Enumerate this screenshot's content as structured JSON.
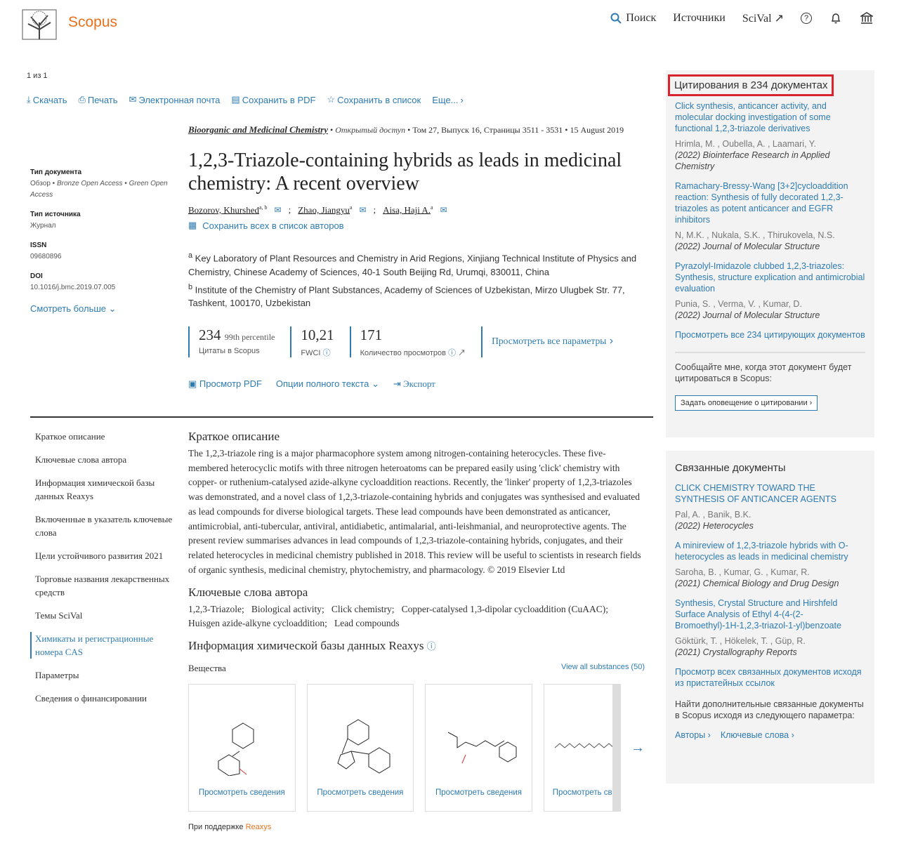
{
  "header": {
    "brand": "Scopus",
    "nav": {
      "search": "Поиск",
      "sources": "Источники",
      "scival": "SciVal ↗"
    },
    "icons": [
      "search-icon",
      "help-icon",
      "bell-icon",
      "institution-icon"
    ]
  },
  "counter": "1 из 1",
  "toolbar": {
    "download": "Скачать",
    "print": "Печать",
    "email": "Электронная почта",
    "save_pdf": "Сохранить в PDF",
    "save_list": "Сохранить в список",
    "more": "Еще..."
  },
  "meta": {
    "doc_type_label": "Тип документа",
    "doc_type": "Обзор •",
    "access1": "Bronze Open Access •",
    "access2": "Green Open Access",
    "source_type_label": "Тип источника",
    "source_type": "Журнал",
    "issn_label": "ISSN",
    "issn": "09680896",
    "doi_label": "DOI",
    "doi": "10.1016/j.bmc.2019.07.005",
    "see_more": "Смотреть больше"
  },
  "article": {
    "journal": "Bioorganic and Medicinal Chemistry",
    "open_access": "Открытый доступ",
    "volume": "Том 27, Выпуск 16, Страницы 3511 - 3531",
    "date": "15 August 2019",
    "title": "1,2,3-Triazole-containing hybrids as leads in medicinal chemistry: A recent overview",
    "authors": [
      {
        "name": "Bozorov, Khurshed",
        "sup": "a, b"
      },
      {
        "name": "Zhao, Jiangyu",
        "sup": "a"
      },
      {
        "name": "Aisa, Haji A.",
        "sup": "a"
      }
    ],
    "save_authors": "Сохранить всех в список авторов",
    "affiliations": [
      {
        "sup": "a",
        "text": "Key Laboratory of Plant Resources and Chemistry in Arid Regions, Xinjiang Technical Institute of Physics and Chemistry, Chinese Academy of Sciences, 40-1 South Beijing Rd, Urumqi, 830011, China"
      },
      {
        "sup": "b",
        "text": "Institute of the Chemistry of Plant Substances, Academy of Sciences of Uzbekistan, Mirzo Ulugbek Str. 77, Tashkent, 100170, Uzbekistan"
      }
    ]
  },
  "metrics": {
    "citations": "234",
    "percentile": "99th percentile",
    "citations_label": "Цитаты в Scopus",
    "fwci": "10,21",
    "fwci_label": "FWCI",
    "views": "171",
    "views_label": "Количество просмотров",
    "all": "Просмотреть все параметры"
  },
  "actions": {
    "pdf": "Просмотр PDF",
    "fulltext": "Опции полного текста",
    "export": "Экспорт"
  },
  "leftnav": [
    "Краткое описание",
    "Ключевые слова автора",
    "Информация химической базы данных Reaxys",
    "Включенные в указатель ключевые слова",
    "Цели устойчивого развития 2021",
    "Торговые названия лекарственных средств",
    "Темы SciVal",
    "Химикаты и регистрационные номера CAS",
    "Параметры",
    "Сведения о финансировании"
  ],
  "abstract": {
    "heading": "Краткое описание",
    "text": "The 1,2,3-triazole ring is a major pharmacophore system among nitrogen-containing heterocycles. These five-membered heterocyclic motifs with three nitrogen heteroatoms can be prepared easily using 'click' chemistry with copper- or ruthenium-catalysed azide-alkyne cycloaddition reactions. Recently, the 'linker' property of 1,2,3-triazoles was demonstrated, and a novel class of 1,2,3-triazole-containing hybrids and conjugates was synthesised and evaluated as lead compounds for diverse biological targets. These lead compounds have been demonstrated as anticancer, antimicrobial, anti-tubercular, antiviral, antidiabetic, antimalarial, anti-leishmanial, and neuroprotective agents. The present review summarises advances in lead compounds of 1,2,3-triazole-containing hybrids, conjugates, and their related heterocycles in medicinal chemistry published in 2018. This review will be useful to scientists in research fields of organic synthesis, medicinal chemistry, phytochemistry, and pharmacology. © 2019 Elsevier Ltd"
  },
  "keywords": {
    "heading": "Ключевые слова автора",
    "text": "1,2,3-Triazole;   Biological activity;   Click chemistry;   Copper-catalysed 1,3-dipolar cycloaddition (CuAAC);   Huisgen azide-alkyne cycloaddition;   Lead compounds"
  },
  "reaxys": {
    "heading": "Информация химической базы данных Reaxys",
    "substances": "Вещества",
    "view_all": "View all substances (50)",
    "card_link": "Просмотреть сведения",
    "powered": "При поддержке",
    "brand": "Reaxys"
  },
  "citations_panel": {
    "heading": "Цитирования в 234 документах",
    "items": [
      {
        "title": "Click synthesis, anticancer activity, and molecular docking investigation of some functional 1,2,3-triazole derivatives",
        "authors": "Hrimla, M. , Oubella, A. , Laamari, Y.",
        "journal": "(2022) Biointerface Research in Applied Chemistry"
      },
      {
        "title": "Ramachary-Bressy-Wang [3+2]cycloaddition reaction: Synthesis of fully decorated 1,2,3-triazoles as potent anticancer and EGFR inhibitors",
        "authors": "N, M.K. , Nukala, S.K. , Thirukovela, N.S.",
        "journal": "(2022) Journal of Molecular Structure"
      },
      {
        "title": "Pyrazolyl-Imidazole clubbed 1,2,3-triazoles: Synthesis, structure explication and antimicrobial evaluation",
        "authors": "Punia, S. , Verma, V. , Kumar, D.",
        "journal": "(2022) Journal of Molecular Structure"
      }
    ],
    "view_all": "Просмотреть все 234 цитирующих документов",
    "alert_text": "Сообщайте мне, когда этот документ будет цитироваться в Scopus:",
    "alert_button": "Задать оповещение о цитировании"
  },
  "related_panel": {
    "heading": "Связанные документы",
    "items": [
      {
        "title": "CLICK CHEMISTRY TOWARD THE SYNTHESIS OF ANTICANCER AGENTS",
        "authors": "Pal, A. , Banik, B.K.",
        "journal": "(2022) Heterocycles"
      },
      {
        "title": "A minireview of 1,2,3-triazole hybrids with O-heterocycles as leads in medicinal chemistry",
        "authors": "Saroha, B. , Kumar, G. , Kumar, R.",
        "journal": "(2021) Chemical Biology and Drug Design"
      },
      {
        "title": "Synthesis, Crystal Structure and Hirshfeld Surface Analysis of Ethyl 4-(4-(2-Bromoethyl)-1H-1,2,3-triazol-1-yl)benzoate",
        "authors": "Göktürk, T. , Hökelek, T. , Güp, R.",
        "journal": "(2021) Crystallography Reports"
      }
    ],
    "view_all": "Просмотр всех связанных документов исходя из пристатейных ссылок",
    "find_text": "Найти дополнительные связанные документы в Scopus исходя из следующего параметра:",
    "authors_link": "Авторы",
    "keywords_link": "Ключевые слова"
  },
  "colors": {
    "link": "#2e7bb2",
    "brand": "#e9711c",
    "highlight": "#d9232d",
    "panel": "#f3f3f3"
  }
}
